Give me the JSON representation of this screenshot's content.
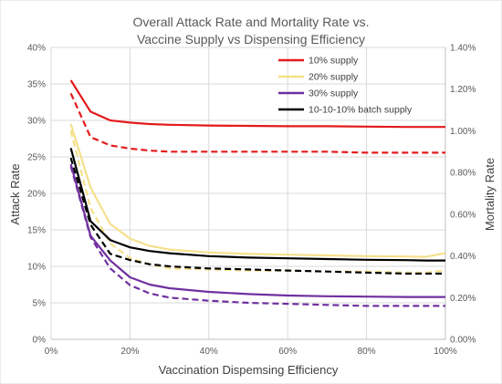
{
  "chart_data": {
    "type": "line",
    "title_lines": [
      "Overall Attack Rate and Mortality Rate vs.",
      "Vaccine Supply vs Dispensing Efficiency"
    ],
    "xlabel": "Vaccination Dispemsing Efficiency",
    "ylabel": "Attack Rate",
    "y2label": "Mortality Rate",
    "xlim": [
      0,
      100
    ],
    "ylim": [
      0,
      40
    ],
    "y2lim": [
      0,
      1.4
    ],
    "x_ticks": [
      "0%",
      "20%",
      "40%",
      "60%",
      "80%",
      "100%"
    ],
    "y_ticks": [
      "0%",
      "5%",
      "10%",
      "15%",
      "20%",
      "25%",
      "30%",
      "35%",
      "40%"
    ],
    "y2_ticks": [
      "0.00%",
      "0.20%",
      "0.40%",
      "0.60%",
      "0.80%",
      "1.00%",
      "1.20%",
      "1.40%"
    ],
    "grid": true,
    "legend_position": "top-right",
    "x": [
      5,
      10,
      15,
      20,
      25,
      30,
      40,
      50,
      60,
      70,
      80,
      90,
      95,
      100
    ],
    "series": [
      {
        "name": "10% supply",
        "color": "#e31a1c",
        "attack_rate": [
          35.5,
          31.2,
          30.0,
          29.7,
          29.5,
          29.4,
          29.3,
          29.25,
          29.2,
          29.2,
          29.15,
          29.1,
          29.1,
          29.1
        ],
        "mortality_rate": [
          1.18,
          0.97,
          0.93,
          0.915,
          0.905,
          0.9,
          0.9,
          0.9,
          0.9,
          0.9,
          0.895,
          0.895,
          0.895,
          0.895
        ]
      },
      {
        "name": "20% supply",
        "color": "#f5e08a",
        "attack_rate": [
          29.5,
          20.8,
          15.8,
          13.8,
          12.8,
          12.3,
          11.9,
          11.7,
          11.6,
          11.5,
          11.4,
          11.35,
          11.3,
          11.8
        ],
        "mortality_rate": [
          1.0,
          0.63,
          0.46,
          0.39,
          0.36,
          0.34,
          0.335,
          0.33,
          0.33,
          0.325,
          0.325,
          0.32,
          0.32,
          0.33
        ]
      },
      {
        "name": "30% supply",
        "color": "#7030a0",
        "attack_rate": [
          24.0,
          14.2,
          10.8,
          8.5,
          7.5,
          7.0,
          6.5,
          6.2,
          6.0,
          5.9,
          5.85,
          5.8,
          5.8,
          5.8
        ],
        "mortality_rate": [
          0.83,
          0.49,
          0.34,
          0.26,
          0.22,
          0.2,
          0.185,
          0.175,
          0.17,
          0.165,
          0.16,
          0.16,
          0.16,
          0.16
        ]
      },
      {
        "name": "10-10-10% batch supply",
        "color": "#000000",
        "attack_rate": [
          26.2,
          16.2,
          13.6,
          12.6,
          12.1,
          11.8,
          11.4,
          11.2,
          11.1,
          11.0,
          10.9,
          10.85,
          10.8,
          10.8
        ],
        "mortality_rate": [
          0.87,
          0.55,
          0.41,
          0.38,
          0.36,
          0.35,
          0.34,
          0.335,
          0.33,
          0.325,
          0.32,
          0.315,
          0.315,
          0.315
        ]
      }
    ]
  }
}
